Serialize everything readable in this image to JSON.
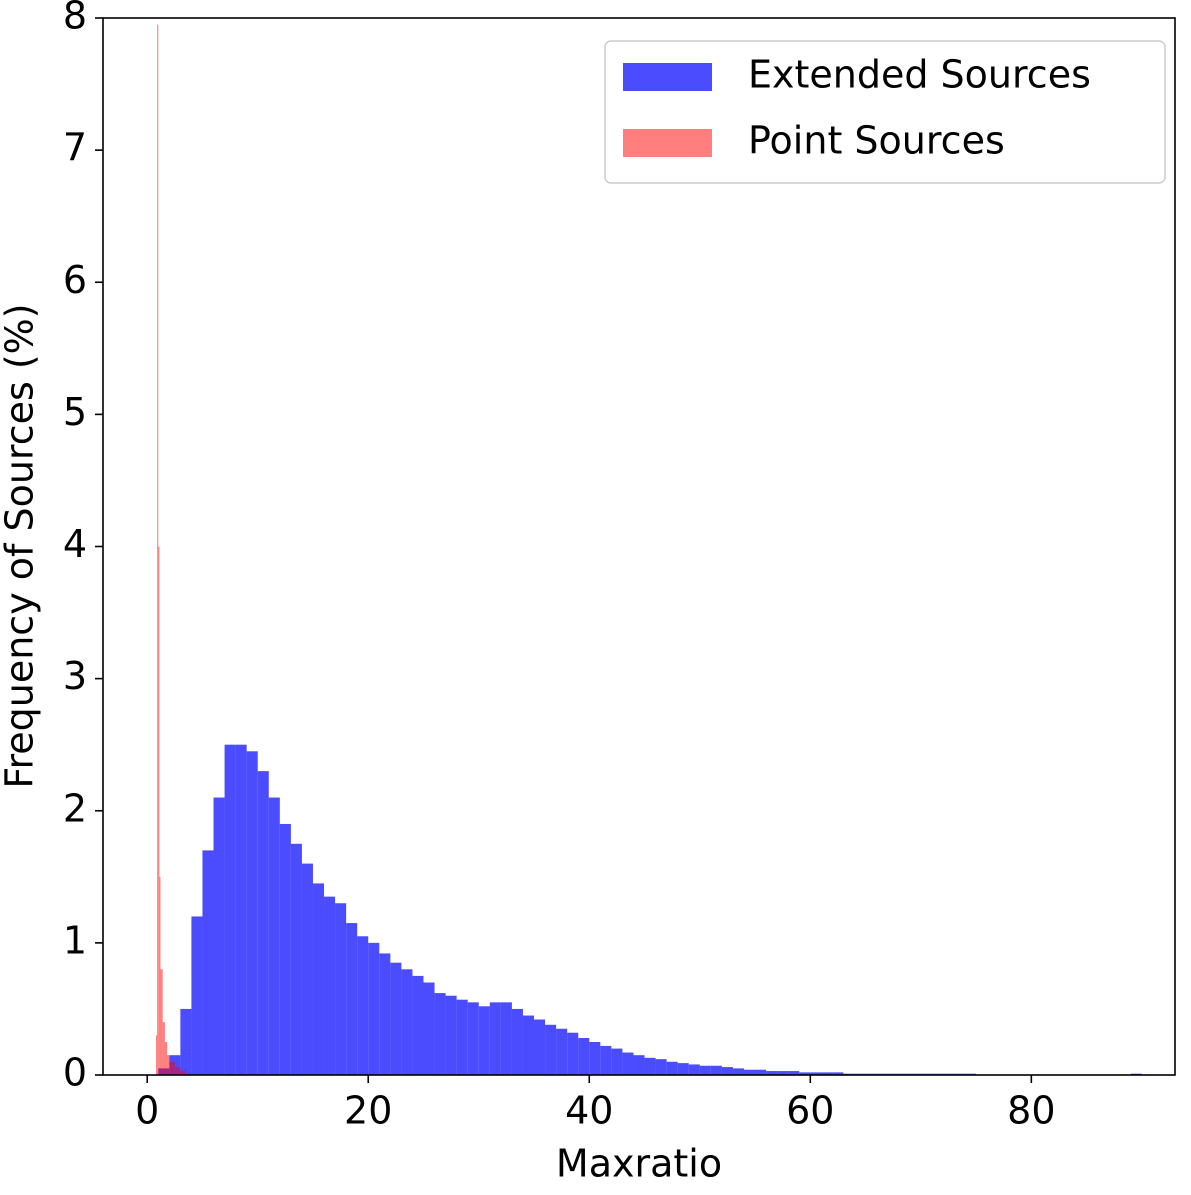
{
  "chart_data": {
    "type": "histogram",
    "xlabel": "Maxratio",
    "ylabel": "Frequency of Sources (%)",
    "xlim": [
      -4,
      93
    ],
    "ylim": [
      0,
      8
    ],
    "xticks": [
      0,
      20,
      40,
      60,
      80
    ],
    "yticks": [
      0,
      1,
      2,
      3,
      4,
      5,
      6,
      7,
      8
    ],
    "legend": "upper right",
    "series": [
      {
        "name": "Extended Sources",
        "color": "#0000ff",
        "alpha": 0.7,
        "bins": [
          1,
          2,
          3,
          4,
          5,
          6,
          7,
          8,
          9,
          10,
          11,
          12,
          13,
          14,
          15,
          16,
          17,
          18,
          19,
          20,
          21,
          22,
          23,
          24,
          25,
          26,
          27,
          28,
          29,
          30,
          31,
          32,
          33,
          34,
          35,
          36,
          37,
          38,
          39,
          40,
          41,
          42,
          43,
          44,
          45,
          46,
          47,
          48,
          49,
          50,
          51,
          52,
          53,
          54,
          55,
          56,
          57,
          58,
          59,
          60,
          61,
          62,
          63,
          64,
          65,
          66,
          67,
          68,
          69,
          70,
          71,
          72,
          73,
          74,
          75,
          76,
          77,
          78,
          79,
          80,
          81,
          82,
          83,
          84,
          85,
          86,
          87,
          88,
          89,
          90
        ],
        "values": [
          0.05,
          0.15,
          0.5,
          1.2,
          1.7,
          2.1,
          2.5,
          2.5,
          2.45,
          2.3,
          2.1,
          1.9,
          1.75,
          1.6,
          1.45,
          1.35,
          1.3,
          1.15,
          1.05,
          1.0,
          0.92,
          0.85,
          0.8,
          0.75,
          0.7,
          0.62,
          0.6,
          0.57,
          0.55,
          0.52,
          0.55,
          0.55,
          0.5,
          0.45,
          0.42,
          0.38,
          0.35,
          0.32,
          0.28,
          0.25,
          0.22,
          0.2,
          0.17,
          0.15,
          0.13,
          0.12,
          0.1,
          0.09,
          0.08,
          0.07,
          0.07,
          0.06,
          0.05,
          0.04,
          0.04,
          0.03,
          0.03,
          0.03,
          0.02,
          0.02,
          0.02,
          0.02,
          0.01,
          0.01,
          0.01,
          0.01,
          0.01,
          0.01,
          0.01,
          0.01,
          0.01,
          0.01,
          0.01,
          0.01,
          0,
          0,
          0,
          0,
          0,
          0,
          0,
          0,
          0,
          0,
          0,
          0,
          0,
          0,
          0.01
        ]
      },
      {
        "name": "Point Sources",
        "color": "#ff0000",
        "alpha": 0.5,
        "bins": [
          0.8,
          0.9,
          1.0,
          1.1,
          1.2,
          1.4,
          1.6,
          1.8,
          2.0,
          2.5,
          3,
          3.5,
          4
        ],
        "values": [
          0.3,
          7.95,
          4,
          1.5,
          0.8,
          0.4,
          0.25,
          0.15,
          0.1,
          0.06,
          0.03,
          0.01
        ]
      }
    ]
  }
}
